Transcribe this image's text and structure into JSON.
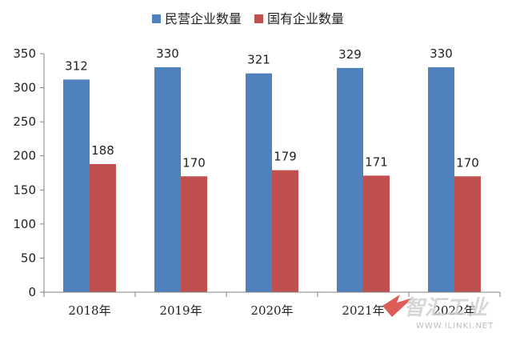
{
  "chart_data": {
    "type": "bar",
    "categories": [
      "2018年",
      "2019年",
      "2020年",
      "2021年",
      "2022年"
    ],
    "series": [
      {
        "name": "民营企业数量",
        "values": [
          312,
          330,
          321,
          329,
          330
        ],
        "color": "#4F81BD"
      },
      {
        "name": "国有企业数量",
        "values": [
          188,
          170,
          179,
          171,
          170
        ],
        "color": "#C0504D"
      }
    ],
    "ylim": [
      0,
      350
    ],
    "yticks": [
      0,
      50,
      100,
      150,
      200,
      250,
      300,
      350
    ],
    "grid": false,
    "legend_position": "top",
    "data_labels": true
  },
  "watermark": {
    "logo": "智汇工业",
    "url": "WWW.ILINKI.NET"
  }
}
